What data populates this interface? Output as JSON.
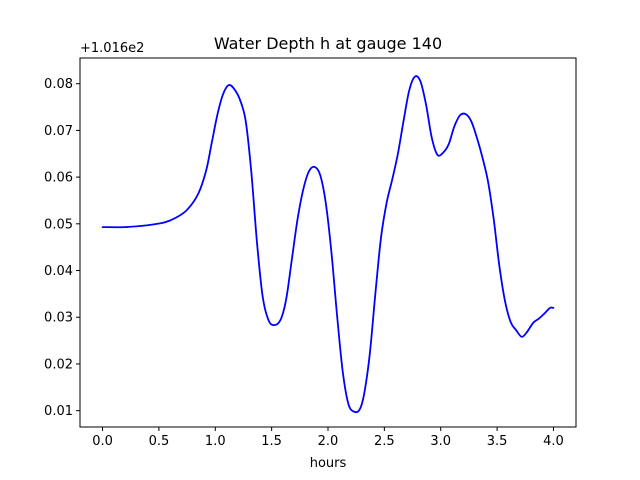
{
  "chart_data": {
    "type": "line",
    "title": "Water Depth h at gauge 140",
    "xlabel": "hours",
    "ylabel": "",
    "y_offset_label": "+1.016e2",
    "xlim": [
      -0.2,
      4.2
    ],
    "ylim": [
      0.0065,
      0.0855
    ],
    "x_ticks": [
      0.0,
      0.5,
      1.0,
      1.5,
      2.0,
      2.5,
      3.0,
      3.5,
      4.0
    ],
    "x_tick_labels": [
      "0.0",
      "0.5",
      "1.0",
      "1.5",
      "2.0",
      "2.5",
      "3.0",
      "3.5",
      "4.0"
    ],
    "y_ticks": [
      0.01,
      0.02,
      0.03,
      0.04,
      0.05,
      0.06,
      0.07,
      0.08
    ],
    "y_tick_labels": [
      "0.01",
      "0.02",
      "0.03",
      "0.04",
      "0.05",
      "0.06",
      "0.07",
      "0.08"
    ],
    "grid": false,
    "series": [
      {
        "color": "#0000ff",
        "x": [
          0.0,
          0.2,
          0.4,
          0.55,
          0.65,
          0.75,
          0.85,
          0.92,
          0.97,
          1.02,
          1.07,
          1.12,
          1.17,
          1.22,
          1.27,
          1.32,
          1.37,
          1.42,
          1.47,
          1.52,
          1.58,
          1.63,
          1.68,
          1.73,
          1.78,
          1.83,
          1.88,
          1.93,
          1.98,
          2.03,
          2.08,
          2.13,
          2.18,
          2.23,
          2.28,
          2.32,
          2.37,
          2.42,
          2.47,
          2.52,
          2.57,
          2.62,
          2.67,
          2.72,
          2.77,
          2.82,
          2.87,
          2.92,
          2.97,
          3.02,
          3.07,
          3.12,
          3.17,
          3.22,
          3.27,
          3.32,
          3.37,
          3.42,
          3.47,
          3.52,
          3.57,
          3.62,
          3.67,
          3.72,
          3.77,
          3.82,
          3.87,
          3.92,
          3.97,
          4.0
        ],
        "y": [
          0.0493,
          0.0493,
          0.0497,
          0.0503,
          0.0513,
          0.053,
          0.0565,
          0.0615,
          0.0675,
          0.0735,
          0.0778,
          0.0797,
          0.0788,
          0.0765,
          0.072,
          0.061,
          0.046,
          0.0345,
          0.0295,
          0.0283,
          0.0295,
          0.034,
          0.0425,
          0.051,
          0.0573,
          0.0612,
          0.0622,
          0.0605,
          0.0545,
          0.044,
          0.0305,
          0.0185,
          0.0115,
          0.0098,
          0.0102,
          0.0135,
          0.022,
          0.035,
          0.047,
          0.0545,
          0.0595,
          0.065,
          0.072,
          0.0785,
          0.0815,
          0.0805,
          0.0755,
          0.0685,
          0.0648,
          0.0652,
          0.067,
          0.0708,
          0.0732,
          0.0735,
          0.072,
          0.0685,
          0.0642,
          0.059,
          0.051,
          0.041,
          0.0335,
          0.029,
          0.0272,
          0.0258,
          0.027,
          0.0288,
          0.0297,
          0.0308,
          0.032,
          0.032
        ]
      }
    ]
  }
}
